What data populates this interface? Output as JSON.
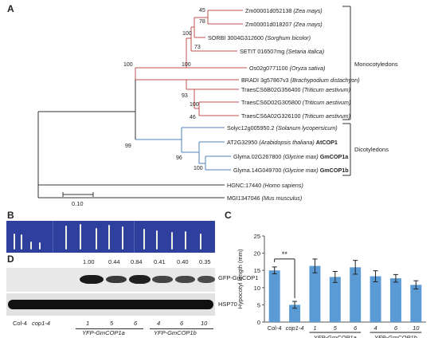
{
  "panelA": {
    "letter": "A",
    "leaves": [
      {
        "id": "Zm00001d052138",
        "species": "(Zea mays)",
        "bold": ""
      },
      {
        "id": "Zm00001d018207",
        "species": "(Zea mays)",
        "bold": ""
      },
      {
        "id": "SORBI 3004G312600",
        "species": "(Sorghum bicolor)",
        "bold": ""
      },
      {
        "id": "SETIT 016507mg",
        "species": "(Setaria italica)",
        "bold": ""
      },
      {
        "id": "Os02g0771100",
        "species": "(Oryza sativa)",
        "bold": ""
      },
      {
        "id": "BRADI 3g57867v3",
        "species": "(Brachypodium distachyon)",
        "bold": ""
      },
      {
        "id": "TraesCS6B02G356400",
        "species": "(Triticum aestivum)",
        "bold": ""
      },
      {
        "id": "TraesCS6D02G305800",
        "species": "(Triticum aestivum)",
        "bold": ""
      },
      {
        "id": "TraesCS6A02G326100",
        "species": "(Triticum aestivum)",
        "bold": ""
      },
      {
        "id": "Solyc12g005950.2",
        "species": "(Solanum lycopersicum)",
        "bold": ""
      },
      {
        "id": "AT2G32950",
        "species": "(Arabidopsis thaliana)",
        "bold": "AtCOP1"
      },
      {
        "id": "Glyma.02G267800",
        "species": "(Glycine max)",
        "bold": "GmCOP1a"
      },
      {
        "id": "Glyma.14G049700",
        "species": "(Glycine max)",
        "bold": "GmCOP1b"
      },
      {
        "id": "HGNC:17440",
        "species": "(Homo sapiens)",
        "bold": ""
      },
      {
        "id": "MGI1347046",
        "species": "(Mus musculus)",
        "bold": ""
      }
    ],
    "bootstraps": [
      "45",
      "78",
      "100",
      "73",
      "100",
      "100",
      "93",
      "100",
      "46",
      "99",
      "96",
      "100"
    ],
    "groups": [
      "Monocotyledons",
      "Dicotyledons"
    ],
    "scale_label": "0.10"
  },
  "panelB": {
    "letter": "B"
  },
  "panelD": {
    "letter": "D",
    "ratios": [
      "1.00",
      "0.44",
      "0.84",
      "0.41",
      "0.40",
      "0.35"
    ],
    "band_labels": [
      "GFP-GmCOP1",
      "HSP70"
    ],
    "lane_labels": [
      "Col-4",
      "cop1-4",
      "1",
      "5",
      "6",
      "4",
      "6",
      "10"
    ],
    "group_labels": [
      "YFP-GmCOP1a",
      "YFP-GmCOP1b"
    ]
  },
  "panelC": {
    "letter": "C"
  },
  "chart_data": {
    "type": "bar",
    "categories": [
      "Col-4",
      "cop1-4",
      "1",
      "5",
      "6",
      "4",
      "6",
      "10"
    ],
    "values": [
      15,
      5,
      16.3,
      13.1,
      15.9,
      13.3,
      12.7,
      10.8
    ],
    "errors": [
      1.0,
      1.0,
      2.0,
      1.6,
      2.0,
      1.6,
      1.1,
      1.2
    ],
    "ylabel": "Hypocotyl length (mm)",
    "yticks": [
      "0",
      "5",
      "10",
      "15",
      "20",
      "25"
    ],
    "ylim": [
      0,
      25
    ],
    "group_labels": [
      "YFP-GmCOP1a",
      "YFP-GmCOP1b"
    ],
    "significance": "**",
    "bar_color": "#5b9bd5"
  }
}
